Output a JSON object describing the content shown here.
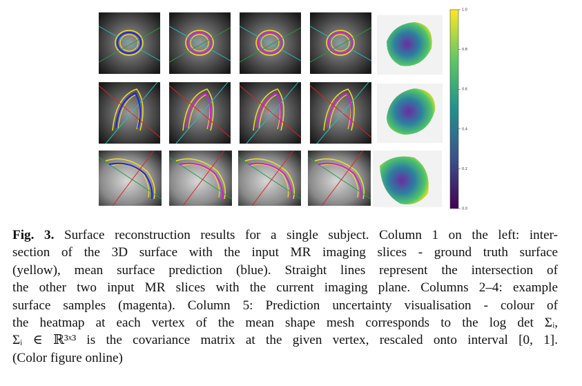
{
  "figure": {
    "colorbar": {
      "ticks": [
        "0.0",
        "0.2",
        "0.4",
        "0.6",
        "0.8",
        "1.0"
      ]
    },
    "caption": {
      "label": "Fig. 3.",
      "lines": [
        "Surface reconstruction results for a single subject. Column 1 on the left: inter-",
        "section of the 3D surface with the input MR imaging slices - ground truth surface",
        "(yellow), mean surface prediction (blue). Straight lines represent the intersection of",
        "the other two input MR slices with the current imaging plane. Columns 2–4: example",
        "surface samples (magenta). Column 5: Prediction uncertainty visualisation - colour of",
        "the heatmap at each vertex of the mean shape mesh corresponds to the log det Σᵢ,",
        "Σᵢ ∈ ℝ³ˣ³ is the covariance matrix at the given vertex, rescaled onto interval [0, 1].",
        "(Color figure online)"
      ]
    }
  }
}
